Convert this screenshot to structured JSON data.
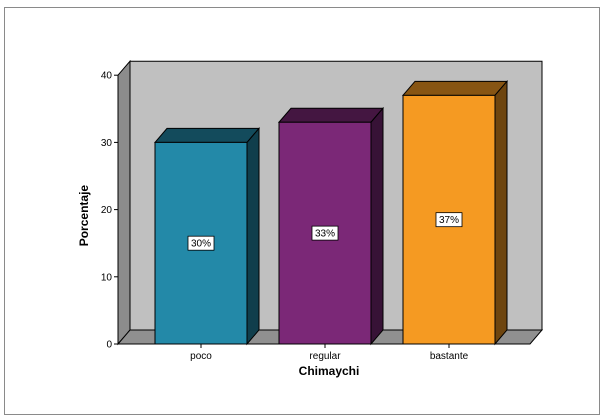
{
  "chart_data": {
    "type": "bar",
    "title": "",
    "xlabel": "Chimaychi",
    "ylabel": "Porcentaje",
    "categories": [
      "poco",
      "regular",
      "bastante"
    ],
    "values": [
      30,
      33,
      37
    ],
    "data_labels": [
      "30%",
      "33%",
      "37%"
    ],
    "colors": [
      "#2389a8",
      "#7b2877",
      "#f59a22"
    ],
    "ylim": [
      0,
      40
    ],
    "yticks": [
      0,
      10,
      20,
      30,
      40
    ],
    "ytick_labels": [
      "0",
      "10",
      "20",
      "30",
      "40"
    ],
    "grid": false,
    "legend": "none",
    "style": "3d",
    "wall_color": "#c0c0c0",
    "floor_color": "#909090"
  }
}
